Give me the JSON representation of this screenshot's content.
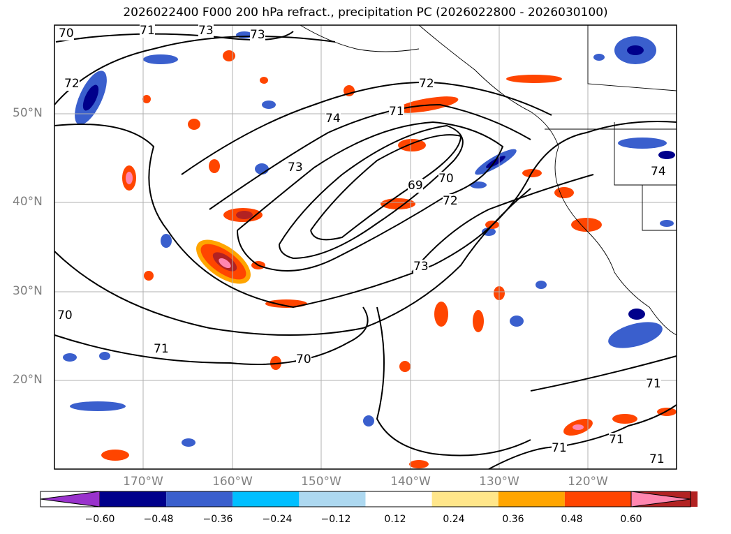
{
  "title": "2026022400 F000 200 hPa refract., precipitation PC (2026022800 - 2026030100)",
  "map": {
    "lat_labels": [
      "50°N",
      "40°N",
      "30°N",
      "20°N"
    ],
    "lon_labels": [
      "170°W",
      "160°W",
      "150°W",
      "140°W",
      "130°W",
      "120°W"
    ],
    "contour_labels": [
      "70",
      "71",
      "73",
      "73",
      "72",
      "72",
      "71",
      "74",
      "73",
      "69",
      "70",
      "72",
      "73",
      "70",
      "71",
      "70",
      "71",
      "71",
      "74",
      "71",
      "71"
    ]
  },
  "colorbar": {
    "tick_labels": [
      "−0.60",
      "−0.48",
      "−0.36",
      "−0.24",
      "−0.12",
      "0.12",
      "0.24",
      "0.36",
      "0.48",
      "0.60"
    ],
    "colors": [
      "#9932cc",
      "#00008b",
      "#3a5fcd",
      "#00bfff",
      "#add8f0",
      "#ffffff",
      "#ffe68a",
      "#ffa500",
      "#ff4500",
      "#b22222",
      "#ff86b0"
    ]
  }
}
